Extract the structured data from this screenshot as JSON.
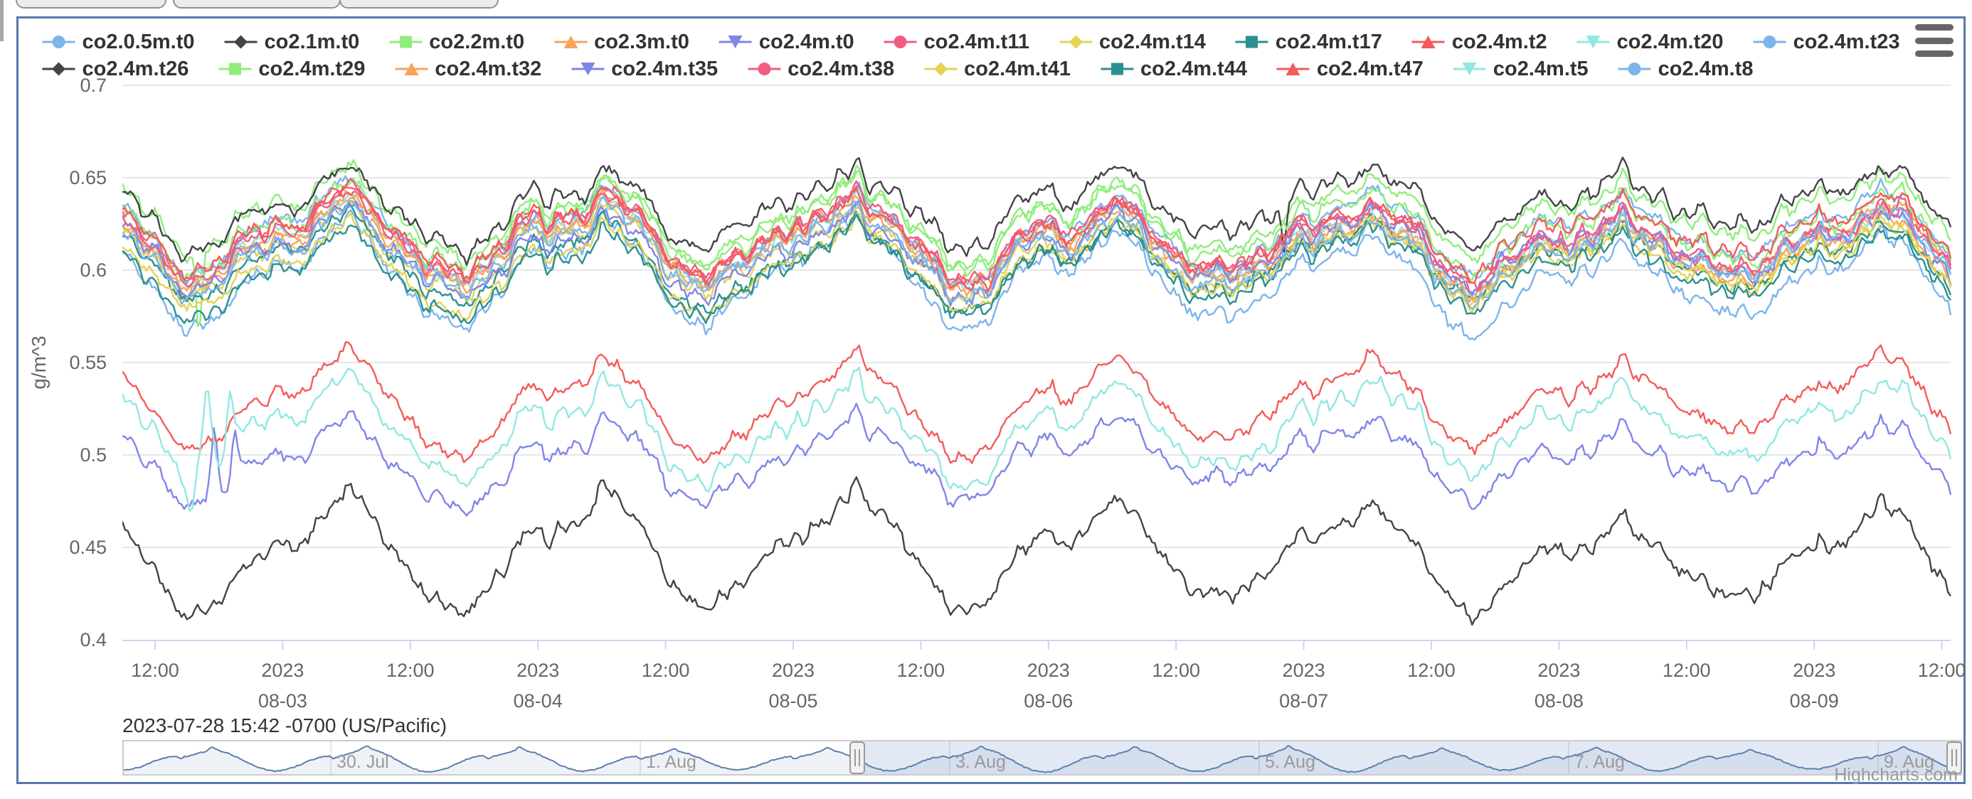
{
  "page": {
    "top_buttons": [
      {
        "label": ""
      },
      {
        "label": ""
      },
      {
        "label": ""
      }
    ]
  },
  "chart": {
    "y_axis_title": "g/m^3",
    "caption": "2023-07-28 15:42 -0700 (US/Pacific)",
    "credits": "Highcharts.com",
    "context_menu_icon": "hamburger-icon",
    "legend_rows": [
      11,
      10
    ],
    "y_ticks": [
      "0.4",
      "0.45",
      "0.5",
      "0.55",
      "0.6",
      "0.65",
      "0.7"
    ],
    "x_ticks": [
      {
        "line1": "12:00",
        "line2": ""
      },
      {
        "line1": "2023",
        "line2": "08-03"
      },
      {
        "line1": "12:00",
        "line2": ""
      },
      {
        "line1": "2023",
        "line2": "08-04"
      },
      {
        "line1": "12:00",
        "line2": ""
      },
      {
        "line1": "2023",
        "line2": "08-05"
      },
      {
        "line1": "12:00",
        "line2": ""
      },
      {
        "line1": "2023",
        "line2": "08-06"
      },
      {
        "line1": "12:00",
        "line2": ""
      },
      {
        "line1": "2023",
        "line2": "08-07"
      },
      {
        "line1": "12:00",
        "line2": ""
      },
      {
        "line1": "2023",
        "line2": "08-08"
      },
      {
        "line1": "12:00",
        "line2": ""
      },
      {
        "line1": "2023",
        "line2": "08-09"
      },
      {
        "line1": "12:00",
        "line2": ""
      }
    ],
    "navigator_labels": [
      "30. Jul",
      "1. Aug",
      "3. Aug",
      "5. Aug",
      "7. Aug",
      "9. Aug"
    ]
  },
  "chart_data": {
    "type": "line",
    "title": "",
    "xlabel": "",
    "ylabel": "g/m^3",
    "ylim": [
      0.4,
      0.7
    ],
    "y_tick_step": 0.05,
    "grid": "horizontal",
    "legend_position": "top",
    "x_start": "2023-08-02 08:30",
    "x_end": "2023-08-09 12:30",
    "x_tick_interval_hours": 12,
    "daily_cycle": {
      "description": "All series follow a shared diurnal cycle: minimum near 15:30, rise through the night with a small dip near midnight, sharp spiked maximum near 05:45, then steady fall to the afternoon minimum.",
      "peak_hour": 5.7,
      "trough_hour": 15.5,
      "peak_day_factors": [
        0.9,
        1.0,
        0.95,
        1.0,
        0.8,
        0.88,
        0.6,
        0.92
      ]
    },
    "series": [
      {
        "name": "co2.0.5m.t0",
        "color": "#7cb5ec",
        "marker": "circle",
        "band": "below-cluster",
        "mean": 0.594,
        "amplitude": 0.027
      },
      {
        "name": "co2.1m.t0",
        "color": "#434348",
        "marker": "diamond",
        "band": "isolated-low",
        "mean": 0.444,
        "amplitude": 0.03
      },
      {
        "name": "co2.2m.t0",
        "color": "#90ed7d",
        "marker": "square",
        "band": "cluster-top",
        "mean": 0.628,
        "amplitude": 0.021
      },
      {
        "name": "co2.3m.t0",
        "color": "#f7a35c",
        "marker": "triangle",
        "band": "cluster",
        "mean": 0.6135,
        "amplitude": 0.021
      },
      {
        "name": "co2.4m.t0",
        "color": "#8085e9",
        "marker": "triangle-down",
        "band": "isolated-mid",
        "mean": 0.4965,
        "amplitude": 0.021
      },
      {
        "name": "co2.4m.t11",
        "color": "#f15c80",
        "marker": "circle",
        "band": "cluster",
        "mean": 0.6165,
        "amplitude": 0.021
      },
      {
        "name": "co2.4m.t14",
        "color": "#e4d354",
        "marker": "diamond",
        "band": "cluster",
        "mean": 0.6065,
        "amplitude": 0.021
      },
      {
        "name": "co2.4m.t17",
        "color": "#2b908f",
        "marker": "square",
        "band": "cluster",
        "mean": 0.6035,
        "amplitude": 0.022
      },
      {
        "name": "co2.4m.t2",
        "color": "#f45b5b",
        "marker": "triangle",
        "band": "isolated-mid",
        "mean": 0.5265,
        "amplitude": 0.026
      },
      {
        "name": "co2.4m.t20",
        "color": "#91e8e1",
        "marker": "triangle-down",
        "band": "cluster",
        "mean": 0.612,
        "amplitude": 0.021
      },
      {
        "name": "co2.4m.t23",
        "color": "#7cb5ec",
        "marker": "circle",
        "band": "cluster",
        "mean": 0.6185,
        "amplitude": 0.024
      },
      {
        "name": "co2.4m.t26",
        "color": "#434348",
        "marker": "diamond",
        "band": "cluster-top",
        "mean": 0.633,
        "amplitude": 0.02
      },
      {
        "name": "co2.4m.t29",
        "color": "#90ed7d",
        "marker": "square",
        "band": "cluster",
        "mean": 0.6215,
        "amplitude": 0.022
      },
      {
        "name": "co2.4m.t32",
        "color": "#f7a35c",
        "marker": "triangle",
        "band": "cluster",
        "mean": 0.611,
        "amplitude": 0.021
      },
      {
        "name": "co2.4m.t35",
        "color": "#8085e9",
        "marker": "triangle-down",
        "band": "cluster",
        "mean": 0.6095,
        "amplitude": 0.021
      },
      {
        "name": "co2.4m.t38",
        "color": "#f15c80",
        "marker": "circle",
        "band": "cluster",
        "mean": 0.615,
        "amplitude": 0.021
      },
      {
        "name": "co2.4m.t41",
        "color": "#e4d354",
        "marker": "diamond",
        "band": "cluster-low",
        "mean": 0.602,
        "amplitude": 0.022
      },
      {
        "name": "co2.4m.t44",
        "color": "#2b908f",
        "marker": "square",
        "band": "cluster-low",
        "mean": 0.5985,
        "amplitude": 0.022
      },
      {
        "name": "co2.4m.t47",
        "color": "#f45b5b",
        "marker": "triangle",
        "band": "cluster",
        "mean": 0.6175,
        "amplitude": 0.021
      },
      {
        "name": "co2.4m.t5",
        "color": "#91e8e1",
        "marker": "triangle-down",
        "band": "isolated-mid",
        "mean": 0.513,
        "amplitude": 0.026
      },
      {
        "name": "co2.4m.t8",
        "color": "#7cb5ec",
        "marker": "circle",
        "band": "cluster",
        "mean": 0.6085,
        "amplitude": 0.021
      }
    ],
    "anomalies": [
      {
        "series": "co2.2m.t0",
        "t_days": 0.3,
        "magnitude": -0.048,
        "width_days": 0.01
      },
      {
        "series": "co2.4m.t5",
        "t_days": 0.27,
        "magnitude": -0.022,
        "width_days": 0.012
      },
      {
        "series": "co2.4m.t5",
        "t_days": 0.33,
        "magnitude": 0.046,
        "width_days": 0.016
      },
      {
        "series": "co2.4m.t5",
        "t_days": 0.42,
        "magnitude": 0.028,
        "width_days": 0.012
      },
      {
        "series": "co2.4m.t0",
        "t_days": 0.36,
        "magnitude": 0.034,
        "width_days": 0.012
      },
      {
        "series": "co2.4m.t0",
        "t_days": 0.44,
        "magnitude": 0.02,
        "width_days": 0.01
      },
      {
        "series": "co2.4m.t26",
        "t_days": 4.55,
        "magnitude": -0.028,
        "width_days": 0.008
      },
      {
        "series": "co2.4m.t23",
        "t_days": 4.55,
        "magnitude": -0.02,
        "width_days": 0.008
      }
    ],
    "navigator": {
      "range_start": "2023-07-28 15:42",
      "range_end": "2023-08-09",
      "selected_from": "2023-08-02",
      "selected_to": "2023-08-09",
      "labels": [
        "30. Jul",
        "1. Aug",
        "3. Aug",
        "5. Aug",
        "7. Aug",
        "9. Aug"
      ],
      "peak_day_factors": [
        0.85,
        0.9,
        1.0,
        0.92,
        0.8,
        0.9,
        1.0,
        0.95,
        1.0,
        0.85,
        0.9,
        0.75,
        0.95
      ]
    }
  }
}
